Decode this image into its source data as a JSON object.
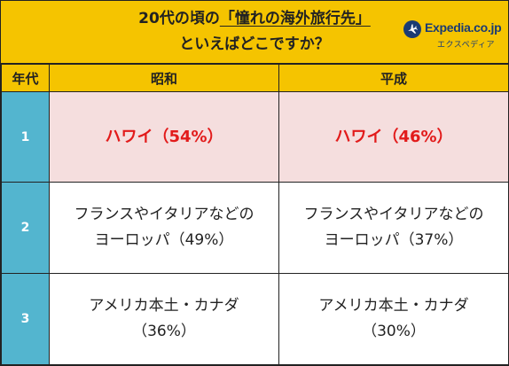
{
  "title": {
    "line1_prefix": "20代の頃の",
    "line1_highlight": "「憧れの海外旅行先」",
    "line2": "といえばどこですか？"
  },
  "logo": {
    "name": "Expedia.co.jp",
    "sub": "エクスペディア",
    "icon": "airplane-icon",
    "color": "#1a3b73"
  },
  "table": {
    "headers": [
      "年代",
      "昭和",
      "平成"
    ],
    "rows": [
      {
        "rank": "1",
        "showa": [
          "ハワイ（54%）"
        ],
        "heisei": [
          "ハワイ（46%）"
        ]
      },
      {
        "rank": "2",
        "showa": [
          "フランスやイタリアなどの",
          "ヨーロッパ（49%）"
        ],
        "heisei": [
          "フランスやイタリアなどの",
          "ヨーロッパ（37%）"
        ]
      },
      {
        "rank": "3",
        "showa": [
          "アメリカ本土・カナダ",
          "（36%）"
        ],
        "heisei": [
          "アメリカ本土・カナダ",
          "（30%）"
        ]
      }
    ]
  },
  "colors": {
    "header_bg": "#f5c400",
    "rank_bg": "#53b5cf",
    "top_row_bg": "#f5dede",
    "top_row_text": "#e21b1b"
  }
}
